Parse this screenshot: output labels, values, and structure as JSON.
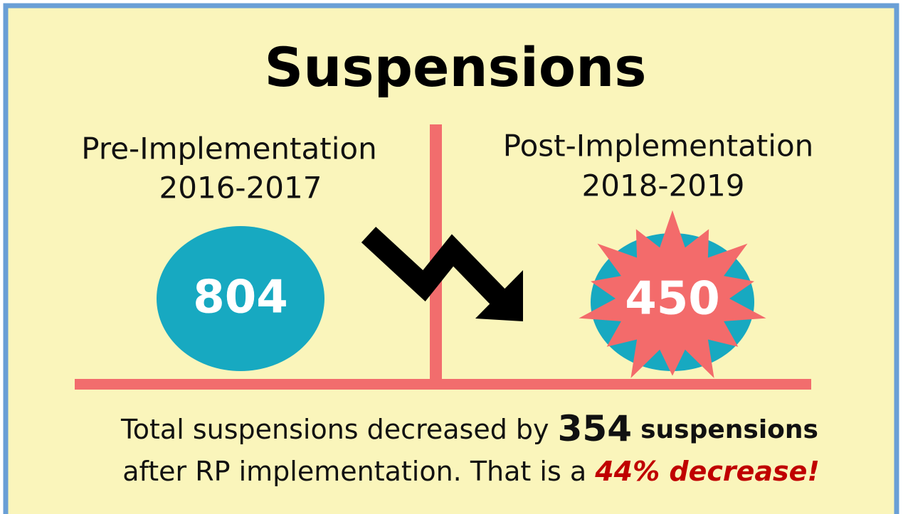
{
  "title": "Suspensions",
  "pre": {
    "label": "Pre-Implementation",
    "period": "2016-2017",
    "value": "804"
  },
  "post": {
    "label": "Post-Implementation",
    "period": "2018-2019",
    "value": "450"
  },
  "summary": {
    "line1": "Total suspensions decreased by",
    "amount": "354",
    "unit": "suspensions",
    "line2": "after RP implementation. That is a",
    "highlight": "44% decrease!"
  }
}
